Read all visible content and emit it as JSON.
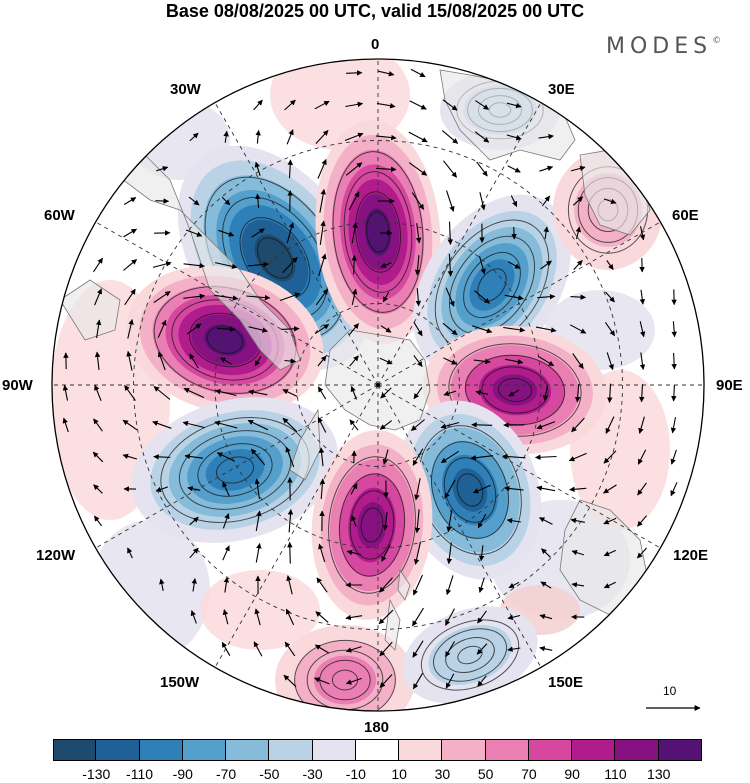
{
  "title": "Base 08/08/2025 00 UTC, valid 15/08/2025 00 UTC",
  "brand": "MODES",
  "brand_mark": "©",
  "longitudes": {
    "top": "0",
    "ne30": "30E",
    "ne60": "60E",
    "right": "90E",
    "se120": "120E",
    "se150": "150E",
    "bottom": "180",
    "sw150": "150W",
    "sw120": "120W",
    "left": "90W",
    "nw60": "60W",
    "nw30": "30W"
  },
  "reference_vector": "10",
  "colorbar": {
    "colors": [
      "#1e4a6e",
      "#1f6196",
      "#2f80b8",
      "#549fcc",
      "#86bbd9",
      "#b9d2e6",
      "#e4e3ef",
      "#ffffff",
      "#fad9dc",
      "#f3b0c6",
      "#e97fb3",
      "#d6479f",
      "#b01c8c",
      "#861180",
      "#541274"
    ],
    "labels": [
      "-130",
      "-110",
      "-90",
      "-70",
      "-50",
      "-30",
      "-10",
      "10",
      "30",
      "50",
      "70",
      "90",
      "110",
      "130"
    ]
  },
  "anomalies": [
    {
      "name": "trough-60w",
      "value": -140
    },
    {
      "name": "ridge-0",
      "value": 135
    },
    {
      "name": "trough-40e",
      "value": -100
    },
    {
      "name": "ridge-80w",
      "value": 135
    },
    {
      "name": "ridge-90e",
      "value": 120
    },
    {
      "name": "trough-120w",
      "value": -90
    },
    {
      "name": "trough-130e",
      "value": -120
    },
    {
      "name": "ridge-170w",
      "value": 110
    },
    {
      "name": "ridge-170e",
      "value": 50
    },
    {
      "name": "trough-150e",
      "value": -40
    },
    {
      "name": "ridge-55e",
      "value": 40
    },
    {
      "name": "trough-20e",
      "value": -30
    }
  ]
}
